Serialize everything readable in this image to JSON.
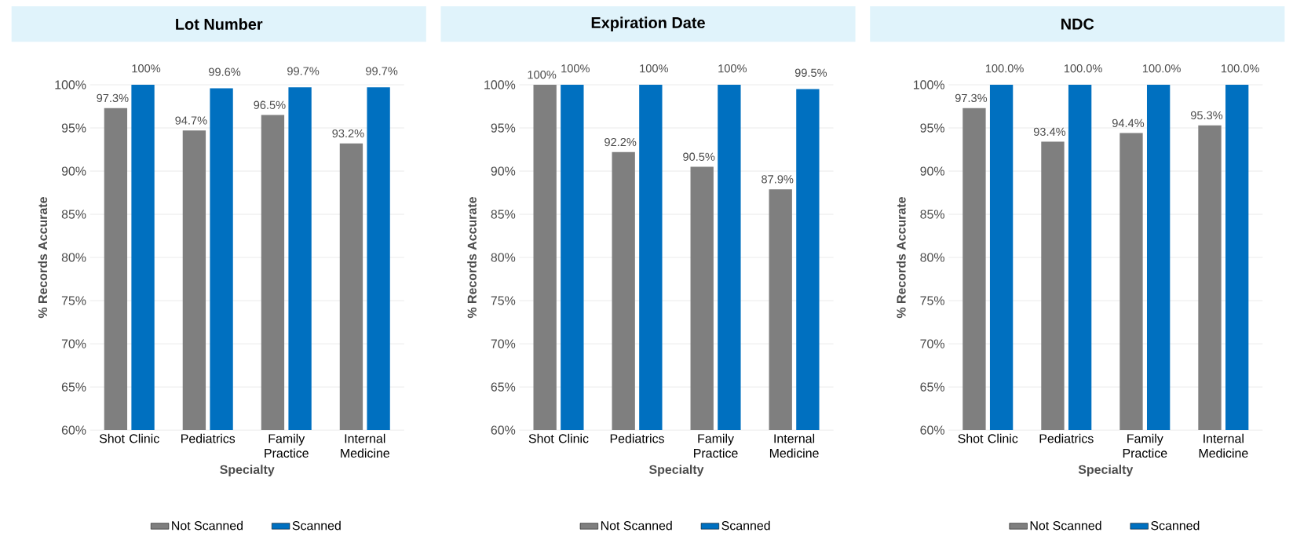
{
  "chart_data": [
    {
      "type": "bar",
      "title": "Lot Number",
      "xlabel": "Specialty",
      "ylabel": "% Records Accurate",
      "categories": [
        "Shot Clinic",
        "Pediatrics",
        "Family Practice",
        "Internal Medicine"
      ],
      "ylim": [
        60,
        100
      ],
      "yticks": [
        {
          "value": 60,
          "label": "60%"
        },
        {
          "value": 65,
          "label": "65%"
        },
        {
          "value": 70,
          "label": "70%"
        },
        {
          "value": 75,
          "label": "75%"
        },
        {
          "value": 80,
          "label": "80%"
        },
        {
          "value": 85,
          "label": "85%"
        },
        {
          "value": 90,
          "label": "90%"
        },
        {
          "value": 95,
          "label": "95%"
        },
        {
          "value": 100,
          "label": "100%"
        }
      ],
      "grid": "y",
      "legend": "bottom",
      "series": [
        {
          "name": "Not Scanned",
          "color": "#7f7f7f",
          "values": [
            97.3,
            94.7,
            96.5,
            93.2
          ],
          "value_labels": [
            "97.3%",
            "94.7%",
            "96.5%",
            "93.2%"
          ]
        },
        {
          "name": "Scanned",
          "color": "#0070c0",
          "values": [
            100,
            99.6,
            99.7,
            99.7
          ],
          "value_labels": [
            "100%",
            "99.6%",
            "99.7%",
            "99.7%"
          ]
        }
      ]
    },
    {
      "type": "bar",
      "title": "Expiration Date",
      "xlabel": "Specialty",
      "ylabel": "% Records Accurate",
      "categories": [
        "Shot Clinic",
        "Pediatrics",
        "Family Practice",
        "Internal Medicine"
      ],
      "ylim": [
        60,
        100
      ],
      "yticks": [
        {
          "value": 60,
          "label": "60%"
        },
        {
          "value": 65,
          "label": "65%"
        },
        {
          "value": 70,
          "label": "70%"
        },
        {
          "value": 75,
          "label": "75%"
        },
        {
          "value": 80,
          "label": "80%"
        },
        {
          "value": 85,
          "label": "85%"
        },
        {
          "value": 90,
          "label": "90%"
        },
        {
          "value": 95,
          "label": "95%"
        },
        {
          "value": 100,
          "label": "100%"
        }
      ],
      "grid": "y",
      "legend": "bottom",
      "series": [
        {
          "name": "Not Scanned",
          "color": "#7f7f7f",
          "values": [
            100,
            92.2,
            90.5,
            87.9
          ],
          "value_labels": [
            "100%",
            "92.2%",
            "90.5%",
            "87.9%"
          ]
        },
        {
          "name": "Scanned",
          "color": "#0070c0",
          "values": [
            100,
            100,
            100,
            99.5
          ],
          "value_labels": [
            "100%",
            "100%",
            "100%",
            "99.5%"
          ]
        }
      ]
    },
    {
      "type": "bar",
      "title": "NDC",
      "xlabel": "Specialty",
      "ylabel": "% Records Accurate",
      "categories": [
        "Shot Clinic",
        "Pediatrics",
        "Family Practice",
        "Internal Medicine"
      ],
      "ylim": [
        60,
        100
      ],
      "yticks": [
        {
          "value": 60,
          "label": "60%"
        },
        {
          "value": 65,
          "label": "65%"
        },
        {
          "value": 70,
          "label": "70%"
        },
        {
          "value": 75,
          "label": "75%"
        },
        {
          "value": 80,
          "label": "80%"
        },
        {
          "value": 85,
          "label": "85%"
        },
        {
          "value": 90,
          "label": "90%"
        },
        {
          "value": 95,
          "label": "95%"
        },
        {
          "value": 100,
          "label": "100%"
        }
      ],
      "grid": "y",
      "legend": "bottom",
      "series": [
        {
          "name": "Not Scanned",
          "color": "#7f7f7f",
          "values": [
            97.3,
            93.4,
            94.4,
            95.3
          ],
          "value_labels": [
            "97.3%",
            "93.4%",
            "94.4%",
            "95.3%"
          ]
        },
        {
          "name": "Scanned",
          "color": "#0070c0",
          "values": [
            100,
            100,
            100,
            100
          ],
          "value_labels": [
            "100.0%",
            "100.0%",
            "100.0%",
            "100.0%"
          ]
        }
      ]
    }
  ]
}
